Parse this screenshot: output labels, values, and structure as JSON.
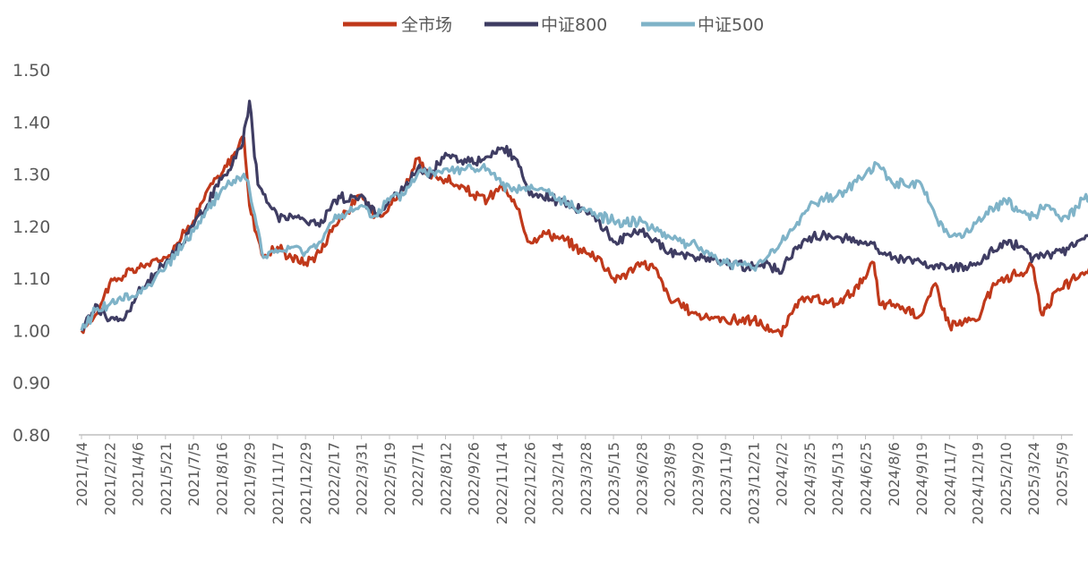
{
  "chart_data": {
    "type": "line",
    "title": "",
    "xlabel": "",
    "ylabel": "",
    "ylim": [
      0.8,
      1.5
    ],
    "yticks": [
      "0.80",
      "0.90",
      "1.00",
      "1.10",
      "1.20",
      "1.30",
      "1.40",
      "1.50"
    ],
    "categories": [
      "2021/1/4",
      "2021/2/22",
      "2021/4/6",
      "2021/5/21",
      "2021/7/5",
      "2021/8/16",
      "2021/9/29",
      "2021/11/17",
      "2021/12/29",
      "2022/2/17",
      "2022/3/31",
      "2022/5/19",
      "2022/7/1",
      "2022/8/12",
      "2022/9/26",
      "2022/11/14",
      "2022/12/26",
      "2023/2/14",
      "2023/3/28",
      "2023/5/15",
      "2023/6/28",
      "2023/8/9",
      "2023/9/20",
      "2023/11/9",
      "2023/12/21",
      "2024/2/2",
      "2024/3/25",
      "2024/5/13",
      "2024/6/25",
      "2024/8/6",
      "2024/9/19",
      "2024/11/7",
      "2024/12/19",
      "2025/2/10",
      "2025/3/24",
      "2025/5/9"
    ],
    "legend": [
      "全市场",
      "中证800",
      "中证500"
    ],
    "series": [
      {
        "name": "全市场",
        "color": "#C0391B",
        "anchors": [
          [
            0,
            1.0
          ],
          [
            0.5,
            1.03
          ],
          [
            1,
            1.09
          ],
          [
            2,
            1.12
          ],
          [
            3,
            1.14
          ],
          [
            4,
            1.21
          ],
          [
            4.5,
            1.27
          ],
          [
            5,
            1.3
          ],
          [
            5.8,
            1.37
          ],
          [
            6.0,
            1.24
          ],
          [
            6.5,
            1.14
          ],
          [
            7,
            1.16
          ],
          [
            7.5,
            1.14
          ],
          [
            8,
            1.13
          ],
          [
            8.5,
            1.15
          ],
          [
            9,
            1.2
          ],
          [
            10,
            1.26
          ],
          [
            10.5,
            1.22
          ],
          [
            11,
            1.24
          ],
          [
            11.5,
            1.27
          ],
          [
            12,
            1.33
          ],
          [
            12.3,
            1.3
          ],
          [
            13,
            1.29
          ],
          [
            14,
            1.26
          ],
          [
            14.5,
            1.25
          ],
          [
            15,
            1.28
          ],
          [
            15.5,
            1.24
          ],
          [
            16,
            1.17
          ],
          [
            16.5,
            1.19
          ],
          [
            17,
            1.18
          ],
          [
            18,
            1.15
          ],
          [
            18.5,
            1.14
          ],
          [
            19,
            1.1
          ],
          [
            19.5,
            1.11
          ],
          [
            20,
            1.13
          ],
          [
            20.5,
            1.12
          ],
          [
            21,
            1.06
          ],
          [
            22,
            1.03
          ],
          [
            23,
            1.02
          ],
          [
            23.5,
            1.02
          ],
          [
            24,
            1.02
          ],
          [
            25,
            0.99
          ],
          [
            25.5,
            1.05
          ],
          [
            26,
            1.06
          ],
          [
            27,
            1.05
          ],
          [
            28,
            1.1
          ],
          [
            28.3,
            1.13
          ],
          [
            28.5,
            1.05
          ],
          [
            29,
            1.05
          ],
          [
            30,
            1.03
          ],
          [
            30.5,
            1.09
          ],
          [
            31,
            1.01
          ],
          [
            32,
            1.02
          ],
          [
            32.5,
            1.08
          ],
          [
            33,
            1.1
          ],
          [
            34,
            1.12
          ],
          [
            34.3,
            1.03
          ],
          [
            34.5,
            1.05
          ],
          [
            35,
            1.08
          ],
          [
            36,
            1.12
          ]
        ]
      },
      {
        "name": "中证800",
        "color": "#3F3D63",
        "anchors": [
          [
            0,
            1.0
          ],
          [
            0.5,
            1.05
          ],
          [
            1,
            1.02
          ],
          [
            1.5,
            1.02
          ],
          [
            2,
            1.07
          ],
          [
            3,
            1.13
          ],
          [
            4,
            1.2
          ],
          [
            5,
            1.29
          ],
          [
            5.7,
            1.35
          ],
          [
            6.0,
            1.44
          ],
          [
            6.3,
            1.28
          ],
          [
            7,
            1.22
          ],
          [
            7.5,
            1.22
          ],
          [
            8,
            1.21
          ],
          [
            8.5,
            1.2
          ],
          [
            9,
            1.25
          ],
          [
            10,
            1.26
          ],
          [
            10.5,
            1.22
          ],
          [
            11,
            1.25
          ],
          [
            11.5,
            1.27
          ],
          [
            12,
            1.31
          ],
          [
            12.5,
            1.3
          ],
          [
            13,
            1.34
          ],
          [
            14,
            1.32
          ],
          [
            15,
            1.35
          ],
          [
            15.5,
            1.33
          ],
          [
            16,
            1.26
          ],
          [
            17,
            1.25
          ],
          [
            18,
            1.23
          ],
          [
            18.5,
            1.21
          ],
          [
            19,
            1.17
          ],
          [
            20,
            1.19
          ],
          [
            21,
            1.15
          ],
          [
            22,
            1.14
          ],
          [
            23,
            1.13
          ],
          [
            24,
            1.12
          ],
          [
            24.5,
            1.13
          ],
          [
            25,
            1.11
          ],
          [
            25.5,
            1.16
          ],
          [
            26,
            1.18
          ],
          [
            27,
            1.18
          ],
          [
            28,
            1.17
          ],
          [
            29,
            1.14
          ],
          [
            30,
            1.13
          ],
          [
            31,
            1.12
          ],
          [
            32,
            1.13
          ],
          [
            33,
            1.17
          ],
          [
            33.5,
            1.16
          ],
          [
            34,
            1.14
          ],
          [
            35,
            1.15
          ],
          [
            36,
            1.18
          ]
        ]
      },
      {
        "name": "中证500",
        "color": "#7FB3C8",
        "anchors": [
          [
            0,
            1.0
          ],
          [
            0.5,
            1.04
          ],
          [
            1,
            1.05
          ],
          [
            2,
            1.07
          ],
          [
            3,
            1.12
          ],
          [
            4,
            1.19
          ],
          [
            5,
            1.27
          ],
          [
            5.8,
            1.3
          ],
          [
            6.0,
            1.27
          ],
          [
            6.5,
            1.14
          ],
          [
            7,
            1.15
          ],
          [
            7.5,
            1.16
          ],
          [
            8,
            1.15
          ],
          [
            8.5,
            1.17
          ],
          [
            9,
            1.21
          ],
          [
            10,
            1.24
          ],
          [
            10.5,
            1.22
          ],
          [
            11,
            1.25
          ],
          [
            11.5,
            1.26
          ],
          [
            12,
            1.3
          ],
          [
            13,
            1.31
          ],
          [
            14,
            1.31
          ],
          [
            14.5,
            1.31
          ],
          [
            15,
            1.28
          ],
          [
            15.5,
            1.27
          ],
          [
            16,
            1.27
          ],
          [
            16.5,
            1.27
          ],
          [
            17,
            1.25
          ],
          [
            18,
            1.23
          ],
          [
            19,
            1.21
          ],
          [
            20,
            1.21
          ],
          [
            21,
            1.18
          ],
          [
            22,
            1.16
          ],
          [
            23,
            1.13
          ],
          [
            24,
            1.12
          ],
          [
            25,
            1.17
          ],
          [
            25.5,
            1.2
          ],
          [
            26,
            1.24
          ],
          [
            27,
            1.26
          ],
          [
            28,
            1.3
          ],
          [
            28.4,
            1.32
          ],
          [
            29,
            1.28
          ],
          [
            30,
            1.28
          ],
          [
            30.5,
            1.22
          ],
          [
            31,
            1.18
          ],
          [
            31.5,
            1.18
          ],
          [
            32,
            1.21
          ],
          [
            33,
            1.25
          ],
          [
            33.5,
            1.23
          ],
          [
            34,
            1.22
          ],
          [
            34.5,
            1.24
          ],
          [
            35,
            1.21
          ],
          [
            36,
            1.26
          ]
        ]
      }
    ]
  }
}
